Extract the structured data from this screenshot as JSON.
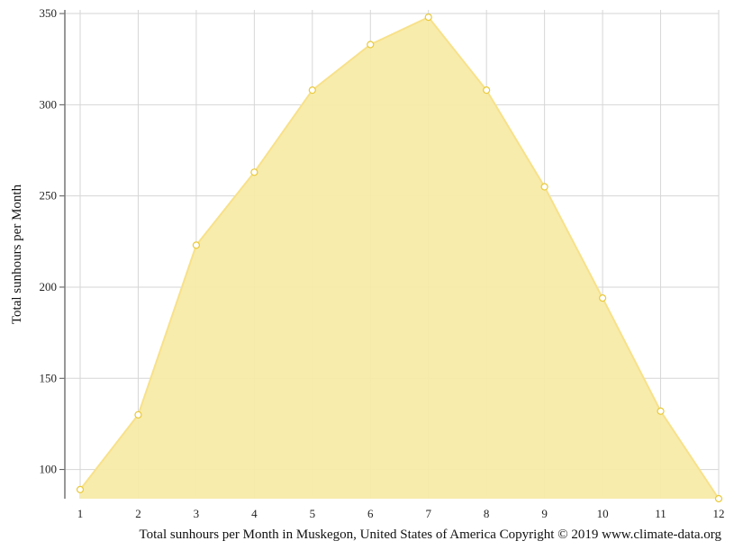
{
  "chart_data": {
    "type": "area",
    "x": [
      1,
      2,
      3,
      4,
      5,
      6,
      7,
      8,
      9,
      10,
      11,
      12
    ],
    "values": [
      89,
      130,
      223,
      263,
      308,
      333,
      348,
      308,
      255,
      194,
      132,
      84
    ],
    "xlabel": "",
    "ylabel": "Total sunhours per Month",
    "caption": "Total sunhours per Month in Muskegon, United States of America Copyright © 2019 www.climate-data.org",
    "xlim": [
      1,
      12
    ],
    "ylim": [
      84,
      352
    ],
    "yticks": [
      100,
      150,
      200,
      250,
      300,
      350
    ],
    "xticks": [
      1,
      2,
      3,
      4,
      5,
      6,
      7,
      8,
      9,
      10,
      11,
      12
    ],
    "grid": true,
    "fill_color": "#f8eba8",
    "line_color": "#f7e18a",
    "marker_stroke": "#e9c93a",
    "grid_color": "#d6d6d6"
  }
}
